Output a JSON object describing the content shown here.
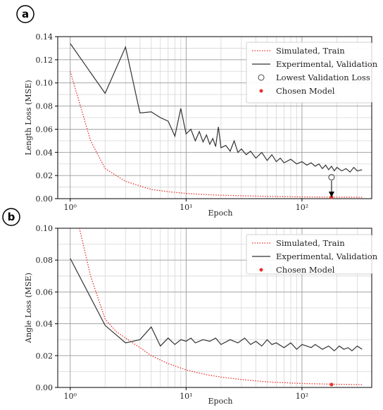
{
  "colors": {
    "train": "#e8312a",
    "validation": "#333333",
    "chosen": "#e8312a",
    "grid_major": "#9a9a9a",
    "grid_minor": "#d6d6d6",
    "marker": "#555555"
  },
  "chart_data": [
    {
      "type": "line",
      "panel_label": "a",
      "xscale": "log",
      "xlim": [
        0.78,
        400
      ],
      "xticks": [
        {
          "value": 1,
          "label": "10⁰"
        },
        {
          "value": 10,
          "label": "10¹"
        },
        {
          "value": 100,
          "label": "10²"
        }
      ],
      "xlabel": "Epoch",
      "ylabel": "Length Loss (MSE)",
      "ylim": [
        0,
        0.14
      ],
      "yticks": [
        "0.00",
        "0.02",
        "0.04",
        "0.06",
        "0.08",
        "0.10",
        "0.12",
        "0.14"
      ],
      "grid": true,
      "legend_position": "top-right",
      "legend": [
        "Simulated, Train",
        "Experimental, Validation",
        "Lowest Validation Loss",
        "Chosen Model"
      ],
      "series": [
        {
          "name": "Simulated, Train",
          "style": "dotted",
          "x": [
            1,
            1.5,
            2,
            3,
            4,
            5,
            7,
            10,
            15,
            20,
            30,
            50,
            100,
            200,
            330
          ],
          "y": [
            0.11,
            0.05,
            0.026,
            0.015,
            0.011,
            0.008,
            0.006,
            0.0045,
            0.0035,
            0.003,
            0.0025,
            0.002,
            0.0015,
            0.0013,
            0.0012
          ]
        },
        {
          "name": "Experimental, Validation",
          "style": "solid",
          "x": [
            1,
            2,
            3,
            4,
            5,
            6,
            7,
            8,
            9,
            10,
            11,
            12,
            13,
            14,
            15,
            16,
            17,
            18,
            19,
            20,
            22,
            24,
            26,
            28,
            30,
            33,
            36,
            40,
            45,
            50,
            55,
            60,
            65,
            70,
            80,
            90,
            100,
            110,
            120,
            130,
            140,
            150,
            160,
            170,
            180,
            190,
            200,
            220,
            240,
            260,
            280,
            300,
            330
          ],
          "y": [
            0.134,
            0.091,
            0.131,
            0.074,
            0.075,
            0.07,
            0.067,
            0.054,
            0.078,
            0.056,
            0.06,
            0.05,
            0.058,
            0.049,
            0.055,
            0.047,
            0.052,
            0.045,
            0.062,
            0.044,
            0.046,
            0.041,
            0.05,
            0.04,
            0.043,
            0.038,
            0.041,
            0.035,
            0.04,
            0.033,
            0.038,
            0.032,
            0.035,
            0.031,
            0.034,
            0.03,
            0.032,
            0.029,
            0.031,
            0.028,
            0.03,
            0.026,
            0.029,
            0.025,
            0.028,
            0.024,
            0.027,
            0.024,
            0.026,
            0.023,
            0.027,
            0.024,
            0.025
          ]
        }
      ],
      "markers": [
        {
          "name": "Lowest Validation Loss",
          "shape": "open-circle",
          "x": 180,
          "y": 0.0185
        },
        {
          "name": "Chosen Model",
          "shape": "filled-dot",
          "x": 180,
          "y": 0.0012
        }
      ],
      "annotations": [
        {
          "type": "arrow",
          "from": [
            180,
            0.0185
          ],
          "to": [
            180,
            0.0012
          ]
        }
      ]
    },
    {
      "type": "line",
      "panel_label": "b",
      "xscale": "log",
      "xlim": [
        0.78,
        400
      ],
      "xticks": [
        {
          "value": 1,
          "label": "10⁰"
        },
        {
          "value": 10,
          "label": "10¹"
        },
        {
          "value": 100,
          "label": "10²"
        }
      ],
      "xlabel": "Epoch",
      "ylabel": "Angle Loss (MSE)",
      "ylim": [
        0,
        0.1
      ],
      "yticks": [
        "0.00",
        "0.02",
        "0.04",
        "0.06",
        "0.08",
        "0.10"
      ],
      "grid": true,
      "legend_position": "top-right",
      "legend": [
        "Simulated, Train",
        "Experimental, Validation",
        "Chosen Model"
      ],
      "series": [
        {
          "name": "Simulated, Train",
          "style": "dotted",
          "x": [
            1.2,
            1.5,
            2,
            2.5,
            3,
            4,
            5,
            7,
            10,
            15,
            20,
            30,
            50,
            100,
            200,
            330
          ],
          "y": [
            0.1,
            0.07,
            0.043,
            0.035,
            0.031,
            0.025,
            0.02,
            0.015,
            0.011,
            0.008,
            0.0065,
            0.005,
            0.0035,
            0.0025,
            0.002,
            0.0018
          ]
        },
        {
          "name": "Experimental, Validation",
          "style": "solid",
          "x": [
            1,
            2,
            3,
            4,
            5,
            6,
            7,
            8,
            9,
            10,
            11,
            12,
            14,
            16,
            18,
            20,
            24,
            28,
            32,
            36,
            40,
            45,
            50,
            55,
            60,
            70,
            80,
            90,
            100,
            110,
            120,
            130,
            150,
            170,
            190,
            210,
            230,
            250,
            270,
            300,
            330
          ],
          "y": [
            0.081,
            0.039,
            0.028,
            0.03,
            0.038,
            0.026,
            0.031,
            0.027,
            0.03,
            0.029,
            0.031,
            0.028,
            0.03,
            0.029,
            0.031,
            0.027,
            0.03,
            0.028,
            0.031,
            0.027,
            0.029,
            0.026,
            0.03,
            0.027,
            0.028,
            0.025,
            0.028,
            0.024,
            0.027,
            0.026,
            0.025,
            0.027,
            0.024,
            0.026,
            0.023,
            0.026,
            0.024,
            0.025,
            0.023,
            0.026,
            0.024
          ]
        }
      ],
      "markers": [
        {
          "name": "Chosen Model",
          "shape": "filled-dot",
          "x": 180,
          "y": 0.0018
        }
      ]
    }
  ]
}
